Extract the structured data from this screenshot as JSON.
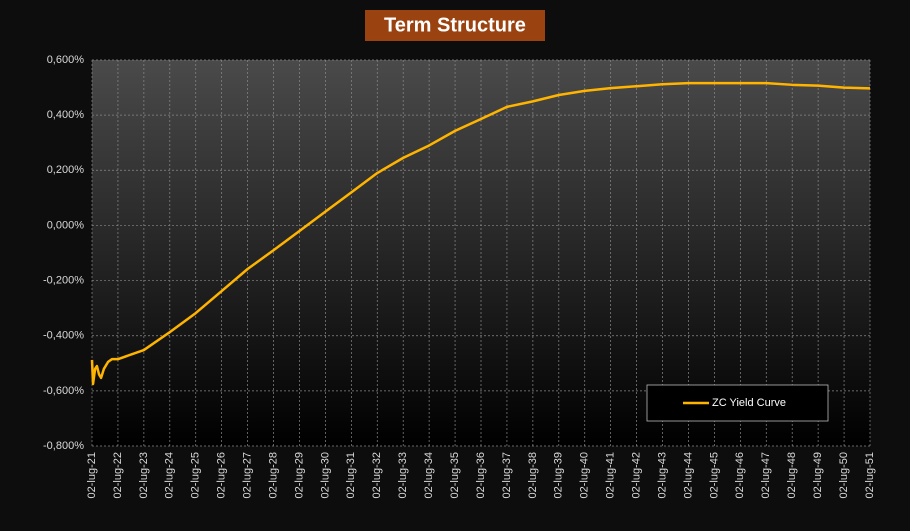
{
  "chart_data": {
    "type": "line",
    "title": "Term Structure",
    "x": [
      2021.5,
      2021.54,
      2021.62,
      2021.69,
      2021.77,
      2021.85,
      2021.96,
      2022.12,
      2022.27,
      2022.5,
      2023.5,
      2024.5,
      2025.5,
      2026.5,
      2027.5,
      2028.5,
      2029.5,
      2030.5,
      2031.5,
      2032.5,
      2033.5,
      2034.5,
      2035.5,
      2036.5,
      2037.5,
      2038.5,
      2039.5,
      2040.5,
      2041.5,
      2042.5,
      2043.5,
      2044.5,
      2045.5,
      2046.5,
      2047.5,
      2048.5,
      2049.5,
      2050.5,
      2051.5
    ],
    "series": [
      {
        "name": "ZC Yield Curve",
        "color": "#ffb400",
        "values": [
          -0.488,
          -0.575,
          -0.52,
          -0.51,
          -0.54,
          -0.553,
          -0.52,
          -0.495,
          -0.485,
          -0.485,
          -0.452,
          -0.387,
          -0.318,
          -0.238,
          -0.158,
          -0.09,
          -0.02,
          0.05,
          0.12,
          0.19,
          0.245,
          0.29,
          0.343,
          0.386,
          0.43,
          0.45,
          0.473,
          0.488,
          0.498,
          0.505,
          0.512,
          0.516,
          0.516,
          0.516,
          0.516,
          0.51,
          0.507,
          0.5,
          0.497
        ]
      }
    ],
    "xlim": [
      2021.5,
      2051.5
    ],
    "xticks": [
      {
        "value": 2021.5,
        "label": "02-lug-21"
      },
      {
        "value": 2022.5,
        "label": "02-lug-22"
      },
      {
        "value": 2023.5,
        "label": "02-lug-23"
      },
      {
        "value": 2024.5,
        "label": "02-lug-24"
      },
      {
        "value": 2025.5,
        "label": "02-lug-25"
      },
      {
        "value": 2026.5,
        "label": "02-lug-26"
      },
      {
        "value": 2027.5,
        "label": "02-lug-27"
      },
      {
        "value": 2028.5,
        "label": "02-lug-28"
      },
      {
        "value": 2029.5,
        "label": "02-lug-29"
      },
      {
        "value": 2030.5,
        "label": "02-lug-30"
      },
      {
        "value": 2031.5,
        "label": "02-lug-31"
      },
      {
        "value": 2032.5,
        "label": "02-lug-32"
      },
      {
        "value": 2033.5,
        "label": "02-lug-33"
      },
      {
        "value": 2034.5,
        "label": "02-lug-34"
      },
      {
        "value": 2035.5,
        "label": "02-lug-35"
      },
      {
        "value": 2036.5,
        "label": "02-lug-36"
      },
      {
        "value": 2037.5,
        "label": "02-lug-37"
      },
      {
        "value": 2038.5,
        "label": "02-lug-38"
      },
      {
        "value": 2039.5,
        "label": "02-lug-39"
      },
      {
        "value": 2040.5,
        "label": "02-lug-40"
      },
      {
        "value": 2041.5,
        "label": "02-lug-41"
      },
      {
        "value": 2042.5,
        "label": "02-lug-42"
      },
      {
        "value": 2043.5,
        "label": "02-lug-43"
      },
      {
        "value": 2044.5,
        "label": "02-lug-44"
      },
      {
        "value": 2045.5,
        "label": "02-lug-45"
      },
      {
        "value": 2046.5,
        "label": "02-lug-46"
      },
      {
        "value": 2047.5,
        "label": "02-lug-47"
      },
      {
        "value": 2048.5,
        "label": "02-lug-48"
      },
      {
        "value": 2049.5,
        "label": "02-lug-49"
      },
      {
        "value": 2050.5,
        "label": "02-lug-50"
      },
      {
        "value": 2051.5,
        "label": "02-lug-51"
      }
    ],
    "ylim": [
      -0.8,
      0.6
    ],
    "yticks": [
      {
        "value": -0.8,
        "label": "-0,800%"
      },
      {
        "value": -0.6,
        "label": "-0,600%"
      },
      {
        "value": -0.4,
        "label": "-0,400%"
      },
      {
        "value": -0.2,
        "label": "-0,200%"
      },
      {
        "value": 0,
        "label": "0,000%"
      },
      {
        "value": 0.2,
        "label": "0,200%"
      },
      {
        "value": 0.4,
        "label": "0,400%"
      },
      {
        "value": 0.6,
        "label": "0,600%"
      }
    ],
    "grid": true,
    "legend_position": "lower right"
  }
}
